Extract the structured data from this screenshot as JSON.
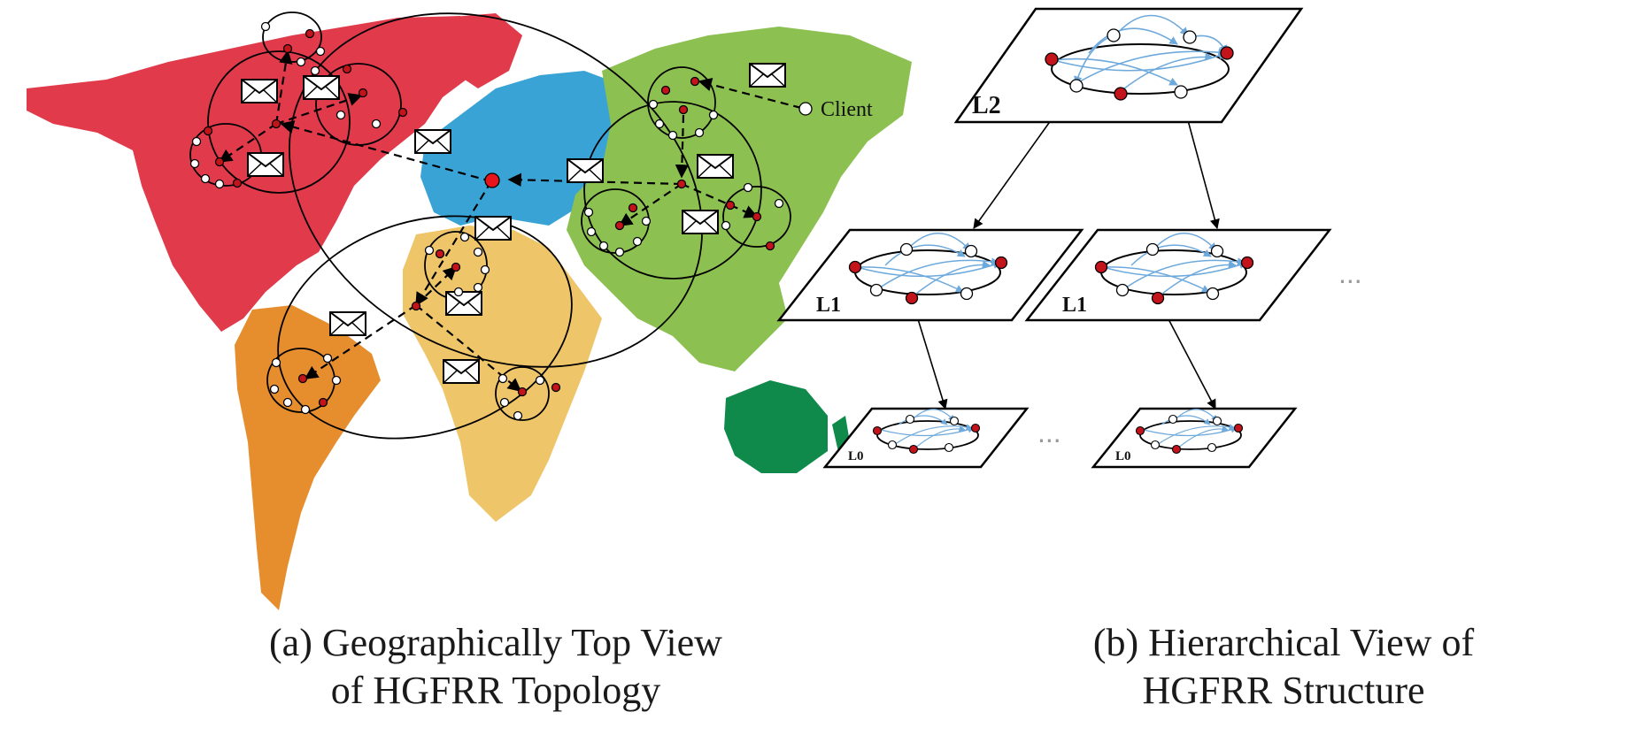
{
  "panel_a": {
    "client_label": "Client",
    "caption_line1": "(a) Geographically Top View",
    "caption_line2": "of HGFRR Topology"
  },
  "panel_b": {
    "layers": [
      {
        "label": "L2"
      },
      {
        "label": "L1"
      },
      {
        "label": "L1"
      },
      {
        "label": "L0"
      },
      {
        "label": "L0"
      }
    ],
    "ellipsis": "...",
    "caption_line1": "(b) Hierarchical View of",
    "caption_line2": "HGFRR Structure"
  },
  "colors": {
    "north_america": "#e03a4b",
    "south_america": "#e68d2e",
    "europe": "#3aa3d6",
    "africa": "#efc56a",
    "asia": "#8cc151",
    "australia": "#0f8a4a",
    "node_red": "#c4141b",
    "node_white": "#ffffff",
    "blue_arrow": "#6ea9dc"
  }
}
